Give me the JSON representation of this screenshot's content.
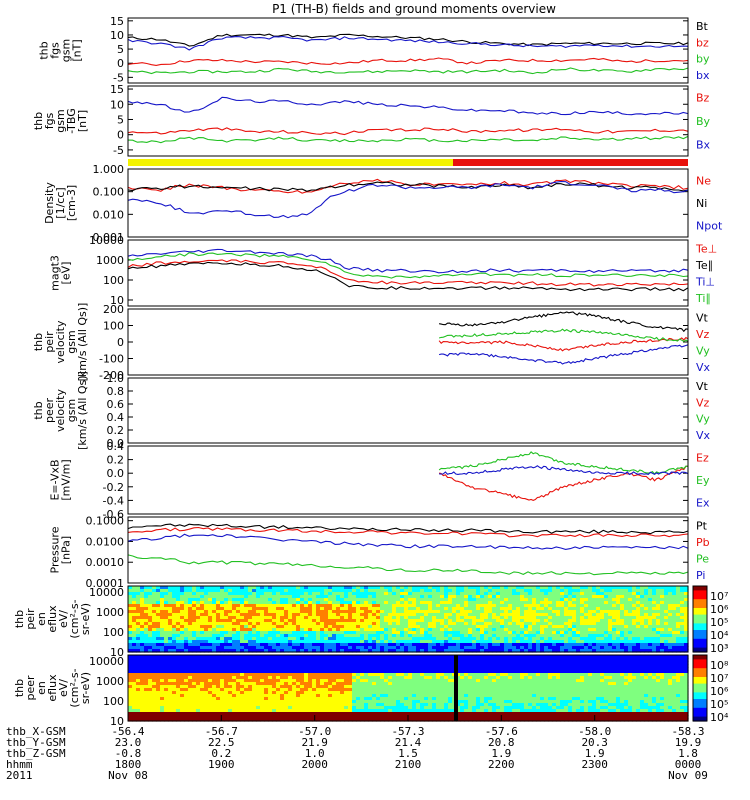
{
  "title": "P1 (TH-B) fields and ground moments overview",
  "colors": {
    "black": "#000000",
    "red": "#e8120c",
    "green": "#22c022",
    "blue": "#1616c8",
    "yellow": "#f3f300",
    "frame": "#000000"
  },
  "chart_data": [
    {
      "type": "line",
      "id": "fgs_gsm",
      "ylabel": [
        "thb",
        "fgs",
        "gsm",
        "[nT]"
      ],
      "ylim": [
        -7,
        16
      ],
      "ticks": [
        "15",
        "10",
        "5",
        "0",
        "-5"
      ],
      "tick_values": [
        15,
        10,
        5,
        0,
        -5
      ],
      "series": [
        {
          "name": "Bt",
          "color": "black",
          "values": [
            9,
            8.5,
            6,
            10,
            10,
            10,
            9,
            10,
            9.5,
            9,
            8.5,
            7.5,
            7,
            6.5,
            7,
            7,
            7,
            7,
            7
          ]
        },
        {
          "name": "bz",
          "color": "red",
          "values": [
            0,
            -0.5,
            1,
            1,
            0.5,
            0.5,
            0,
            0,
            1,
            1,
            1.5,
            0,
            1,
            1,
            1,
            1.5,
            0.5,
            1,
            1
          ]
        },
        {
          "name": "by",
          "color": "green",
          "values": [
            -3,
            -3.5,
            -3,
            -3,
            -3,
            -2,
            -3,
            -3,
            -3,
            -2.5,
            -3,
            -3,
            -2.5,
            -3.5,
            -2,
            -2.5,
            -3,
            -2,
            -2
          ]
        },
        {
          "name": "bx",
          "color": "blue",
          "values": [
            8,
            7,
            5,
            9,
            9,
            9,
            8,
            9,
            8.5,
            8,
            7.5,
            7,
            6.5,
            6,
            6,
            6.5,
            6,
            6,
            6
          ]
        }
      ]
    },
    {
      "type": "line",
      "id": "fgs_gsm_tbg",
      "ylabel": [
        "thb",
        "fgs",
        "gsm",
        "-TBG",
        "[nT]"
      ],
      "ylim": [
        -7,
        16
      ],
      "ticks": [
        "15",
        "10",
        "5",
        "0",
        "-5"
      ],
      "tick_values": [
        15,
        10,
        5,
        0,
        -5
      ],
      "series": [
        {
          "name": "Bz",
          "color": "red",
          "values": [
            1,
            0.5,
            1.5,
            2,
            1,
            1,
            0.5,
            0.5,
            1.5,
            1.5,
            2,
            1,
            1.5,
            1.5,
            2,
            1,
            1,
            1.5,
            1.5
          ]
        },
        {
          "name": "By",
          "color": "green",
          "values": [
            -2,
            -2.5,
            -1,
            -2,
            -2,
            -1,
            -2,
            -2,
            -2,
            -1.5,
            -2,
            -2,
            -1.5,
            -2,
            -1,
            -1.5,
            -1.5,
            -1,
            -1
          ]
        },
        {
          "name": "Bx",
          "color": "blue",
          "values": [
            11,
            10,
            7,
            12,
            11,
            11,
            10,
            11,
            10,
            9.5,
            9,
            8,
            8,
            7,
            7,
            7.5,
            7,
            7,
            7
          ]
        }
      ]
    },
    {
      "type": "line",
      "id": "density",
      "ylabel": [
        "Density",
        "[1/cc]",
        "[cm-3]"
      ],
      "log": true,
      "ylim": [
        0.001,
        1.0
      ],
      "ticks": [
        "1.000",
        "0.100",
        "0.010",
        "0.001"
      ],
      "tick_values": [
        1.0,
        0.1,
        0.01,
        0.001
      ],
      "series": [
        {
          "name": "Ne",
          "color": "red",
          "values": [
            0.15,
            0.12,
            0.2,
            0.15,
            0.12,
            0.1,
            0.1,
            0.25,
            0.3,
            0.22,
            0.2,
            0.2,
            0.25,
            0.2,
            0.3,
            0.25,
            0.18,
            0.17,
            0.15
          ]
        },
        {
          "name": "Ni",
          "color": "black",
          "values": [
            0.12,
            0.15,
            0.18,
            0.15,
            0.14,
            0.12,
            0.12,
            0.2,
            0.25,
            0.2,
            0.18,
            0.15,
            0.2,
            0.15,
            0.22,
            0.2,
            0.15,
            0.15,
            0.12
          ]
        },
        {
          "name": "Npot",
          "color": "blue",
          "values": [
            0.05,
            0.03,
            0.01,
            0.015,
            0.01,
            0.008,
            0.012,
            0.1,
            0.2,
            0.15,
            0.15,
            0.15,
            0.2,
            0.15,
            0.25,
            0.2,
            0.12,
            0.12,
            0.1
          ]
        }
      ]
    },
    {
      "type": "line",
      "id": "temperature",
      "ylabel": [
        "magt3",
        "[eV]"
      ],
      "log": true,
      "ylim": [
        5,
        10000
      ],
      "ticks": [
        "10000",
        "1000",
        "100",
        "10"
      ],
      "tick_values": [
        10000,
        1000,
        100,
        10
      ],
      "series": [
        {
          "name": "Te⊥",
          "color": "red",
          "values": [
            500,
            700,
            800,
            900,
            800,
            700,
            500,
            100,
            80,
            70,
            70,
            80,
            70,
            70,
            60,
            60,
            60,
            60,
            60
          ]
        },
        {
          "name": "Te∥",
          "color": "black",
          "values": [
            400,
            500,
            600,
            700,
            600,
            500,
            300,
            50,
            40,
            40,
            40,
            40,
            40,
            40,
            35,
            35,
            35,
            35,
            35
          ]
        },
        {
          "name": "Ti⊥",
          "color": "blue",
          "values": [
            1500,
            2000,
            2500,
            3000,
            2500,
            2000,
            1500,
            400,
            300,
            300,
            250,
            300,
            300,
            300,
            300,
            280,
            280,
            280,
            300
          ]
        },
        {
          "name": "Ti∥",
          "color": "green",
          "values": [
            1000,
            1500,
            2000,
            2000,
            1800,
            1500,
            1000,
            200,
            150,
            150,
            150,
            200,
            180,
            180,
            170,
            170,
            170,
            170,
            180
          ]
        }
      ]
    },
    {
      "type": "line",
      "id": "peir_velocity",
      "ylabel": [
        "thb",
        "peir",
        "velocity",
        "gsm",
        "[km/s (All Qs)]"
      ],
      "ylim": [
        -200,
        200
      ],
      "ticks": [
        "200",
        "100",
        "0",
        "-100",
        "-200"
      ],
      "tick_values": [
        200,
        100,
        0,
        -100,
        -200
      ],
      "data_start": 10,
      "series": [
        {
          "name": "Vt",
          "color": "black",
          "values": [
            110,
            100,
            120,
            150,
            180,
            160,
            120,
            90,
            70
          ]
        },
        {
          "name": "Vz",
          "color": "red",
          "values": [
            0,
            -10,
            0,
            -20,
            -50,
            -20,
            0,
            10,
            20
          ]
        },
        {
          "name": "Vy",
          "color": "green",
          "values": [
            30,
            40,
            50,
            60,
            70,
            60,
            40,
            20,
            10
          ]
        },
        {
          "name": "Vx",
          "color": "blue",
          "values": [
            -80,
            -70,
            -90,
            -110,
            -130,
            -100,
            -70,
            -40,
            -20
          ]
        }
      ]
    },
    {
      "type": "line",
      "id": "peer_velocity",
      "ylabel": [
        "thb",
        "peer",
        "velocity",
        "gsm",
        "[km/s (All Qs)]"
      ],
      "ylim": [
        0,
        1.0
      ],
      "ticks": [
        "1.0",
        "0.8",
        "0.6",
        "0.4",
        "0.2",
        "0.0"
      ],
      "tick_values": [
        1.0,
        0.8,
        0.6,
        0.4,
        0.2,
        0.0
      ],
      "series": [
        {
          "name": "Vt",
          "color": "black",
          "values": []
        },
        {
          "name": "Vz",
          "color": "red",
          "values": []
        },
        {
          "name": "Vy",
          "color": "green",
          "values": []
        },
        {
          "name": "Vx",
          "color": "blue",
          "values": []
        }
      ]
    },
    {
      "type": "line",
      "id": "efield",
      "ylabel": [
        "E=-VxB",
        "[mV/m]"
      ],
      "ylim": [
        -0.6,
        0.4
      ],
      "ticks": [
        "0.4",
        "0.2",
        "0.0",
        "-0.2",
        "-0.4",
        "-0.6"
      ],
      "tick_values": [
        0.4,
        0.2,
        0.0,
        -0.2,
        -0.4,
        -0.6
      ],
      "data_start": 10,
      "series": [
        {
          "name": "Ez",
          "color": "red",
          "values": [
            0.0,
            -0.2,
            -0.3,
            -0.4,
            -0.2,
            -0.1,
            0.0,
            -0.1,
            0.1
          ]
        },
        {
          "name": "Ey",
          "color": "green",
          "values": [
            0.05,
            0.1,
            0.2,
            0.3,
            0.15,
            0.1,
            0.05,
            0.0,
            0.1
          ]
        },
        {
          "name": "Ex",
          "color": "blue",
          "values": [
            0.0,
            0.0,
            0.05,
            0.1,
            0.05,
            0.0,
            0.0,
            0.0,
            0.0
          ]
        }
      ]
    },
    {
      "type": "line",
      "id": "pressure",
      "ylabel": [
        "Pressure",
        "[nPa]"
      ],
      "log": true,
      "ylim": [
        0.0001,
        0.15
      ],
      "ticks": [
        "0.1000",
        "0.0100",
        "0.0010",
        "0.0001"
      ],
      "tick_values": [
        0.1,
        0.01,
        0.001,
        0.0001
      ],
      "series": [
        {
          "name": "Pt",
          "color": "black",
          "values": [
            0.05,
            0.06,
            0.06,
            0.06,
            0.05,
            0.05,
            0.045,
            0.04,
            0.04,
            0.035,
            0.035,
            0.035,
            0.03,
            0.03,
            0.03,
            0.03,
            0.03,
            0.028,
            0.028
          ]
        },
        {
          "name": "Pb",
          "color": "red",
          "values": [
            0.03,
            0.035,
            0.04,
            0.04,
            0.035,
            0.035,
            0.03,
            0.03,
            0.03,
            0.025,
            0.025,
            0.025,
            0.02,
            0.02,
            0.02,
            0.02,
            0.02,
            0.02,
            0.02
          ]
        },
        {
          "name": "Pe",
          "color": "green",
          "values": [
            0.002,
            0.0015,
            0.001,
            0.001,
            0.0009,
            0.0008,
            0.0007,
            0.0006,
            0.0005,
            0.0004,
            0.0004,
            0.0004,
            0.0003,
            0.0003,
            0.0003,
            0.0003,
            0.0003,
            0.0003,
            0.0003
          ]
        },
        {
          "name": "Pi",
          "color": "blue",
          "values": [
            0.01,
            0.015,
            0.02,
            0.02,
            0.015,
            0.012,
            0.01,
            0.008,
            0.007,
            0.006,
            0.006,
            0.006,
            0.005,
            0.005,
            0.005,
            0.005,
            0.005,
            0.005,
            0.005
          ]
        }
      ]
    },
    {
      "type": "heatmap",
      "id": "peir_spec",
      "ylabel": [
        "thb",
        "peir",
        "en",
        "eflux",
        "eV/",
        "(cm²-s-",
        "sr-eV)"
      ],
      "log": true,
      "ylim": [
        10,
        20000
      ],
      "ticks": [
        "10000",
        "1000",
        "100",
        "10"
      ],
      "tick_values": [
        10000,
        1000,
        100,
        10
      ],
      "colorbar_ticks": [
        "10⁷",
        "10⁶",
        "10⁵",
        "10⁴",
        "10³"
      ]
    },
    {
      "type": "heatmap",
      "id": "peer_spec",
      "ylabel": [
        "thb",
        "peer",
        "en",
        "eflux",
        "eV/",
        "(cm²-s-",
        "sr-eV)"
      ],
      "log": true,
      "ylim": [
        10,
        20000
      ],
      "ticks": [
        "10000",
        "1000",
        "100",
        "10"
      ],
      "tick_values": [
        10000,
        1000,
        100,
        10
      ],
      "colorbar_ticks": [
        "10⁸",
        "10⁷",
        "10⁶",
        "10⁵",
        "10⁴"
      ]
    }
  ],
  "footer": {
    "rows": [
      {
        "label": "thb_X-GSM",
        "values": [
          "-56.4",
          "-56.7",
          "-57.0",
          "-57.3",
          "-57.6",
          "-58.0",
          "-58.3"
        ]
      },
      {
        "label": "thb_Y-GSM",
        "values": [
          "23.0",
          "22.5",
          "21.9",
          "21.4",
          "20.8",
          "20.3",
          "19.9"
        ]
      },
      {
        "label": "thb_Z-GSM",
        "values": [
          "-0.8",
          "0.2",
          "1.0",
          "1.5",
          "1.9",
          "1.9",
          "1.8"
        ]
      },
      {
        "label": "hhmm",
        "values": [
          "1800",
          "1900",
          "2000",
          "2100",
          "2200",
          "2300",
          "0000"
        ]
      },
      {
        "label": "2011",
        "values": [
          "Nov 08",
          "",
          "",
          "",
          "",
          "",
          "Nov 09"
        ]
      }
    ]
  }
}
